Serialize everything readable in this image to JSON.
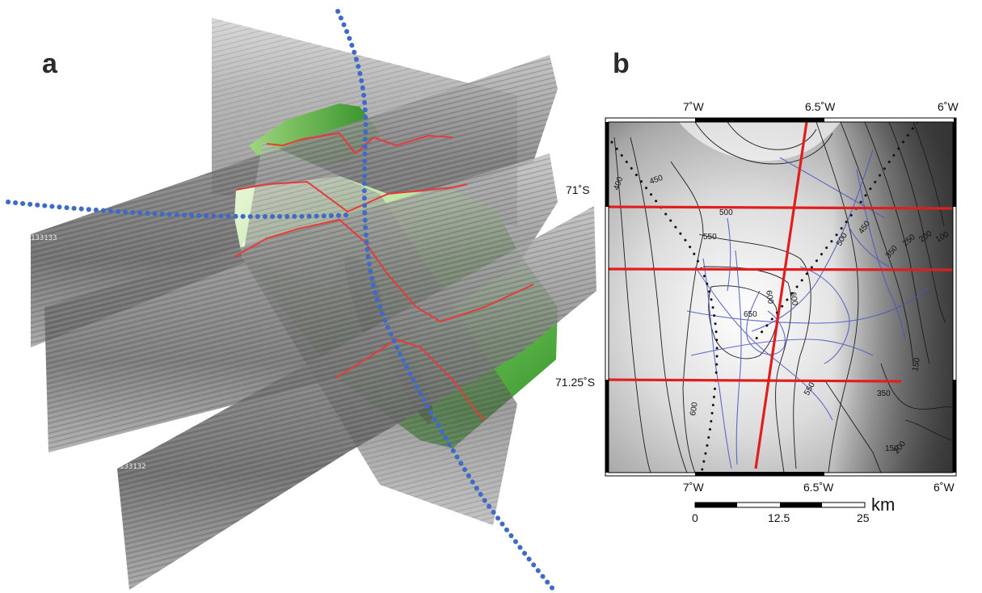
{
  "panel_a": {
    "label": "a",
    "profile_tags": [
      "133133",
      "133132"
    ],
    "colors": {
      "track": "#3f6ac8",
      "horizon": "#e83a3a",
      "seafloor_light": "#d6f0b0",
      "seafloor_dark": "#3f9a2a",
      "section": "#8e8e8e"
    }
  },
  "panel_b": {
    "label": "b",
    "top_ticks": [
      "7˚W",
      "6.5˚W",
      "6˚W"
    ],
    "bottom_ticks": [
      "7˚W",
      "6.5˚W",
      "6˚W"
    ],
    "left_ticks": [
      "71˚S",
      "71.25˚S"
    ],
    "contour_labels": [
      "400",
      "450",
      "500",
      "550",
      "600",
      "650",
      "600",
      "500",
      "450",
      "350",
      "250",
      "200",
      "100",
      "150",
      "350",
      "550",
      "600",
      "150",
      "200"
    ],
    "scale": {
      "labels": [
        "0",
        "12.5",
        "25"
      ],
      "unit": "km"
    },
    "colors": {
      "seismic_lines": "#e01e1e",
      "tracks": "#4a55c0",
      "contours": "#1a1a1a",
      "bathy_dots": "#111111"
    }
  }
}
